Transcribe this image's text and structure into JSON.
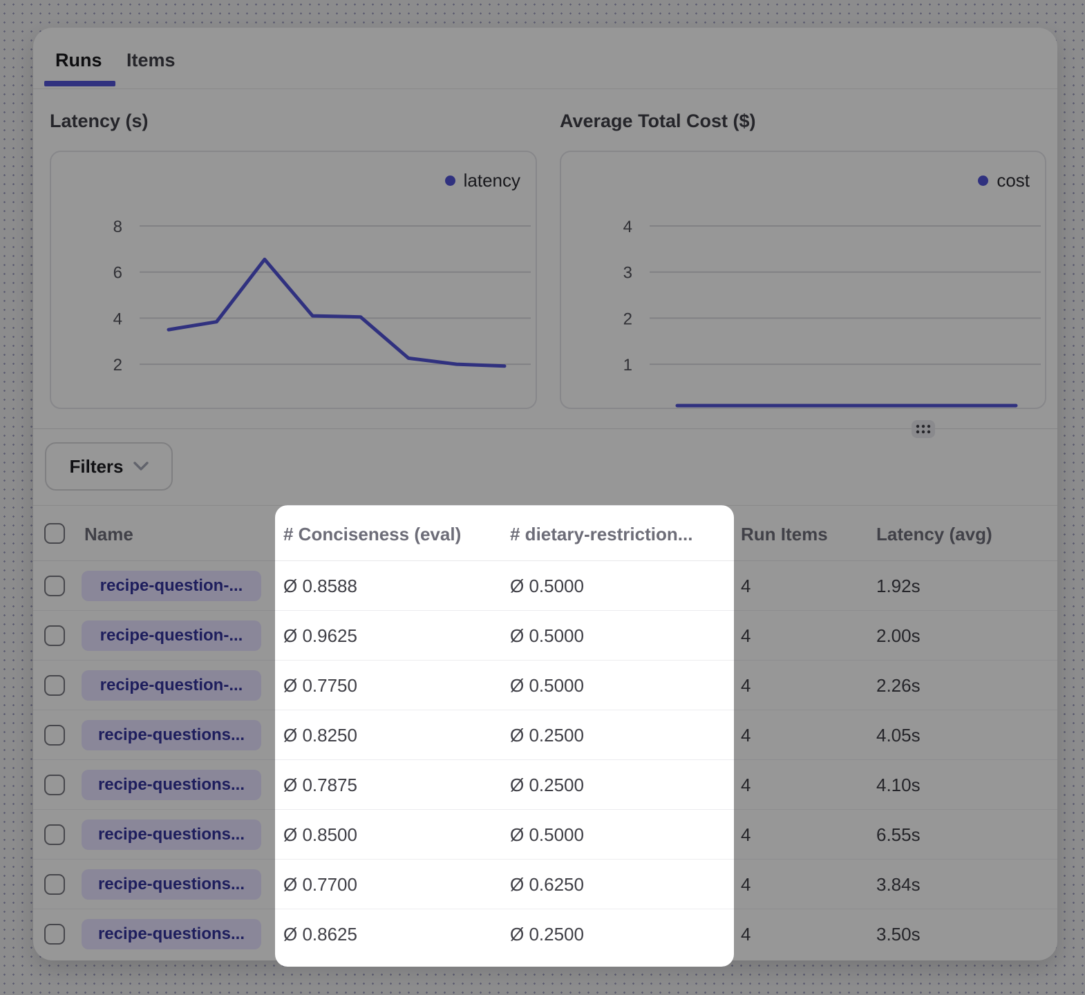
{
  "tabs": [
    {
      "label": "Runs",
      "active": true
    },
    {
      "label": "Items",
      "active": false
    }
  ],
  "chart_data": [
    {
      "type": "line",
      "title": "Latency (s)",
      "xlabel": "",
      "ylabel": "",
      "x": [
        1,
        2,
        3,
        4,
        5,
        6,
        7,
        8
      ],
      "series": [
        {
          "name": "latency",
          "values": [
            3.5,
            3.84,
            6.55,
            4.1,
            4.05,
            2.26,
            2.0,
            1.92
          ]
        }
      ],
      "yticks": [
        2,
        4,
        6,
        8
      ],
      "ylim": [
        0,
        9.2
      ],
      "grid": true,
      "legend_position": "top-right"
    },
    {
      "type": "line",
      "title": "Average Total Cost ($)",
      "xlabel": "",
      "ylabel": "",
      "x": [
        1,
        2,
        3,
        4,
        5,
        6,
        7,
        8
      ],
      "series": [
        {
          "name": "cost",
          "values": [
            0.02,
            0.02,
            0.02,
            0.02,
            0.02,
            0.02,
            0.02,
            0.02
          ]
        }
      ],
      "yticks": [
        1,
        2,
        3,
        4
      ],
      "ylim": [
        0,
        4.6
      ],
      "grid": true,
      "legend_position": "top-right"
    }
  ],
  "filters": {
    "label": "Filters"
  },
  "table": {
    "columns": [
      "Name",
      "# Conciseness (eval)",
      "# dietary-restriction...",
      "Run Items",
      "Latency (avg)"
    ],
    "rows": [
      {
        "name": "recipe-question-...",
        "conciseness": "Ø 0.8588",
        "dietary": "Ø 0.5000",
        "run_items": "4",
        "latency_avg": "1.92s"
      },
      {
        "name": "recipe-question-...",
        "conciseness": "Ø 0.9625",
        "dietary": "Ø 0.5000",
        "run_items": "4",
        "latency_avg": "2.00s"
      },
      {
        "name": "recipe-question-...",
        "conciseness": "Ø 0.7750",
        "dietary": "Ø 0.5000",
        "run_items": "4",
        "latency_avg": "2.26s"
      },
      {
        "name": "recipe-questions...",
        "conciseness": "Ø 0.8250",
        "dietary": "Ø 0.2500",
        "run_items": "4",
        "latency_avg": "4.05s"
      },
      {
        "name": "recipe-questions...",
        "conciseness": "Ø 0.7875",
        "dietary": "Ø 0.2500",
        "run_items": "4",
        "latency_avg": "4.10s"
      },
      {
        "name": "recipe-questions...",
        "conciseness": "Ø 0.8500",
        "dietary": "Ø 0.5000",
        "run_items": "4",
        "latency_avg": "6.55s"
      },
      {
        "name": "recipe-questions...",
        "conciseness": "Ø 0.7700",
        "dietary": "Ø 0.6250",
        "run_items": "4",
        "latency_avg": "3.84s"
      },
      {
        "name": "recipe-questions...",
        "conciseness": "Ø 0.8625",
        "dietary": "Ø 0.2500",
        "run_items": "4",
        "latency_avg": "3.50s"
      }
    ]
  },
  "colors": {
    "accent": "#5153d4",
    "gridline": "#d7d7dc",
    "tick_text": "#52525b",
    "pill_bg": "#e6e1ff",
    "pill_text": "#32329b",
    "dim_overlay": "rgba(0,0,0,0.4)"
  }
}
